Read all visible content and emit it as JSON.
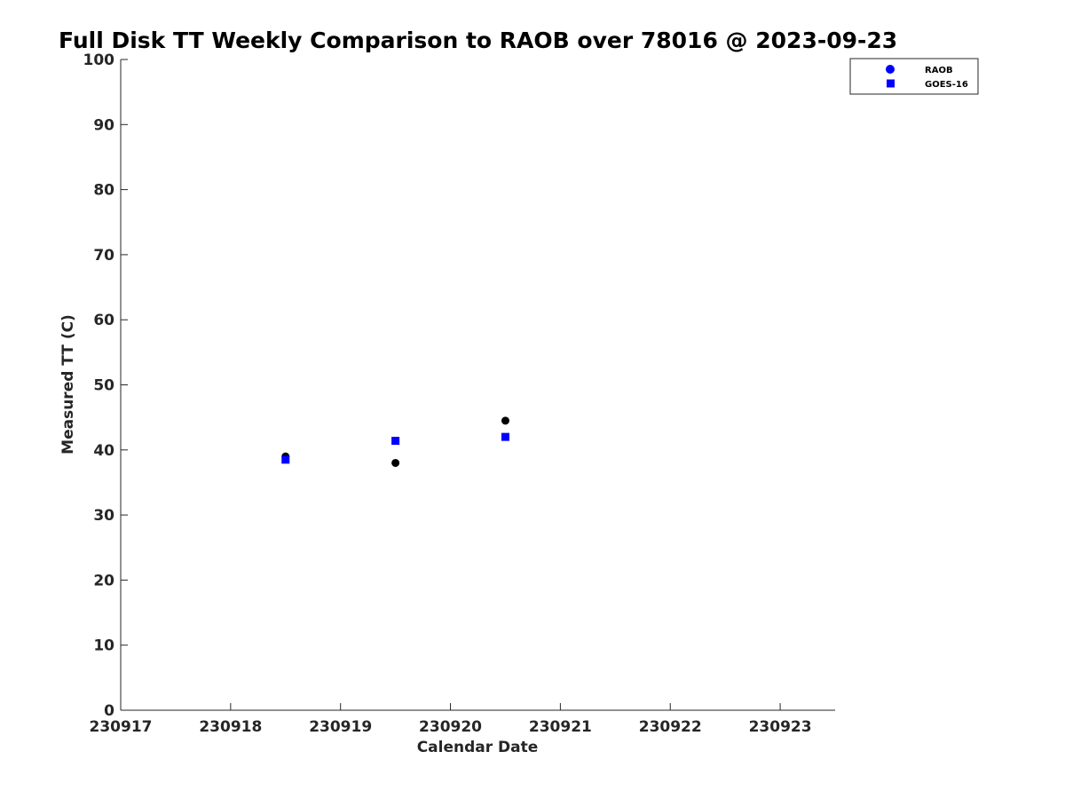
{
  "chart_data": {
    "type": "scatter",
    "title": "Full Disk TT Weekly Comparison to RAOB over 78016 @ 2023-09-23",
    "xlabel": "Calendar Date",
    "ylabel": "Measured TT (C)",
    "xlim": [
      230917,
      230923.5
    ],
    "ylim": [
      0,
      100
    ],
    "x_ticks": [
      230917,
      230918,
      230919,
      230920,
      230921,
      230922,
      230923
    ],
    "x_tick_labels": [
      "230917",
      "230918",
      "230919",
      "230920",
      "230921",
      "230922",
      "230923"
    ],
    "y_ticks": [
      0,
      10,
      20,
      30,
      40,
      50,
      60,
      70,
      80,
      90,
      100
    ],
    "y_tick_labels": [
      "0",
      "10",
      "20",
      "30",
      "40",
      "50",
      "60",
      "70",
      "80",
      "90",
      "100"
    ],
    "grid": false,
    "legend_position": "top-right",
    "series": [
      {
        "name": "RAOB",
        "marker": "circle",
        "color": "#000000",
        "legend_color": "#0000ff",
        "points": [
          {
            "x": 230918.5,
            "y": 39.0
          },
          {
            "x": 230919.5,
            "y": 38.0
          },
          {
            "x": 230920.5,
            "y": 44.5
          }
        ]
      },
      {
        "name": "GOES-16",
        "marker": "square",
        "color": "#0000ff",
        "legend_color": "#0000ff",
        "points": [
          {
            "x": 230918.5,
            "y": 38.5
          },
          {
            "x": 230919.5,
            "y": 41.4
          },
          {
            "x": 230920.5,
            "y": 42.0
          }
        ]
      }
    ]
  }
}
